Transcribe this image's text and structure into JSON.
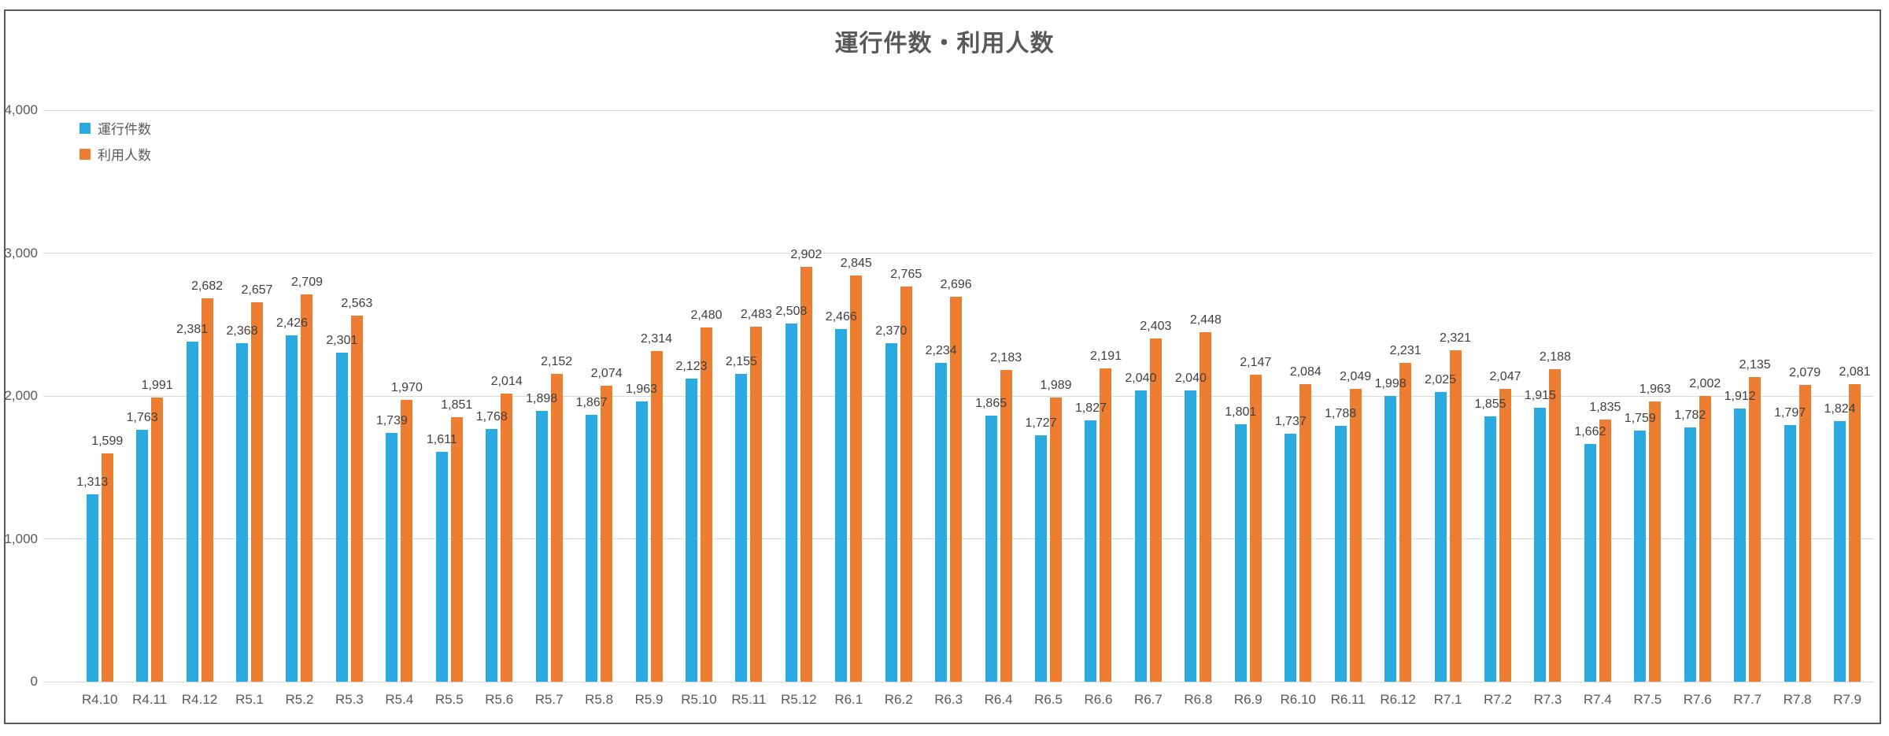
{
  "chart_data": {
    "type": "bar",
    "title": "運行件数・利用人数",
    "categories": [
      "R4.10",
      "R4.11",
      "R4.12",
      "R5.1",
      "R5.2",
      "R5.3",
      "R5.4",
      "R5.5",
      "R5.6",
      "R5.7",
      "R5.8",
      "R5.9",
      "R5.10",
      "R5.11",
      "R5.12",
      "R6.1",
      "R6.2",
      "R6.3",
      "R6.4",
      "R6.5",
      "R6.6",
      "R6.7",
      "R6.8",
      "R6.9",
      "R6.10",
      "R6.11",
      "R6.12",
      "R7.1",
      "R7.2",
      "R7.3",
      "R7.4",
      "R7.5",
      "R7.6",
      "R7.7",
      "R7.8",
      "R7.9"
    ],
    "series": [
      {
        "name": "運行件数",
        "color": "#2BA9E1",
        "values": [
          1313,
          1763,
          2381,
          2368,
          2426,
          2301,
          1739,
          1611,
          1768,
          1898,
          1867,
          1963,
          2123,
          2155,
          2508,
          2466,
          2370,
          2234,
          1865,
          1727,
          1827,
          2040,
          2040,
          1801,
          1737,
          1788,
          1998,
          2025,
          1855,
          1915,
          1662,
          1759,
          1782,
          1912,
          1797,
          1824
        ]
      },
      {
        "name": "利用人数",
        "color": "#ED7D31",
        "values": [
          1599,
          1991,
          2682,
          2657,
          2709,
          2563,
          1970,
          1851,
          2014,
          2152,
          2074,
          2314,
          2480,
          2483,
          2902,
          2845,
          2765,
          2696,
          2183,
          1989,
          2191,
          2403,
          2448,
          2147,
          2084,
          2049,
          2231,
          2321,
          2047,
          2188,
          1835,
          1963,
          2002,
          2135,
          2079,
          2081
        ]
      }
    ],
    "xlabel": "",
    "ylabel": "",
    "ylim": [
      0,
      4000
    ],
    "yticks": [
      0,
      1000,
      2000,
      3000,
      4000
    ],
    "grid": true,
    "legend_position": "top-left",
    "value_labels": true
  }
}
